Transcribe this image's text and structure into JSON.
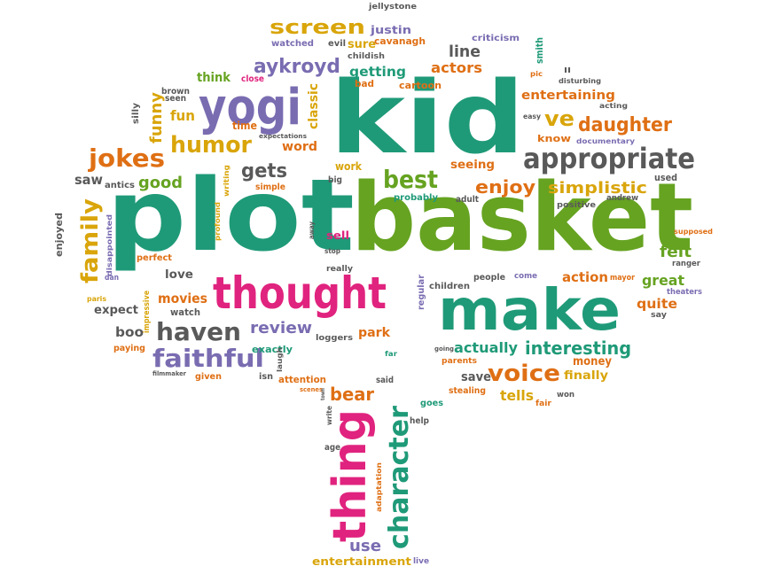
{
  "colors": {
    "teal": "#1f9a78",
    "green": "#66a321",
    "pink": "#e0237e",
    "purple": "#7a6cb1",
    "orange": "#df6f14",
    "gold": "#d9a50a",
    "gray": "#595959",
    "brown": "#8a6a22"
  },
  "words": [
    "kid",
    "plot",
    "basket",
    "make",
    "thought",
    "thing",
    "character",
    "yogi",
    "appropriate",
    "haven",
    "faithful",
    "humor",
    "jokes",
    "best",
    "voice",
    "family",
    "interesting",
    "screen",
    "aykroyd",
    "daughter",
    "review",
    "bear",
    "simplistic",
    "gets",
    "enjoy",
    "ve",
    "line",
    "actors",
    "good",
    "actually",
    "getting",
    "tells",
    "fun",
    "funny",
    "movies",
    "felt",
    "great",
    "quite",
    "action",
    "entertainment",
    "use",
    "classic",
    "entertaining",
    "word",
    "saw",
    "seeing",
    "park",
    "boo",
    "expect",
    "love",
    "money",
    "finally",
    "save",
    "watched",
    "justin",
    "cavanagh",
    "sure",
    "evil",
    "childish",
    "bad",
    "cartoon",
    "think",
    "close",
    "brown",
    "seen",
    "time",
    "silly",
    "antics",
    "simple",
    "work",
    "big",
    "probably",
    "adult",
    "enjoyed",
    "perfect",
    "dan",
    "disappointed",
    "paris",
    "impressive",
    "watch",
    "paying",
    "filmmaker",
    "given",
    "exactly",
    "attention",
    "laugh",
    "isn",
    "scenes",
    "said",
    "write",
    "town",
    "goes",
    "help",
    "age",
    "adaptation",
    "live",
    "stealing",
    "fair",
    "won",
    "regular",
    "children",
    "people",
    "come",
    "mayor",
    "ranger",
    "theaters",
    "supposed",
    "positive",
    "andrew",
    "know",
    "documentary",
    "easy",
    "disturbing",
    "acting",
    "pic",
    "ll",
    "criticism",
    "smith",
    "jellystone",
    "loggers",
    "sell",
    "stop",
    "really",
    "away",
    "writing",
    "profound",
    "expectations",
    "going",
    "parents",
    "far",
    "say",
    "used"
  ]
}
